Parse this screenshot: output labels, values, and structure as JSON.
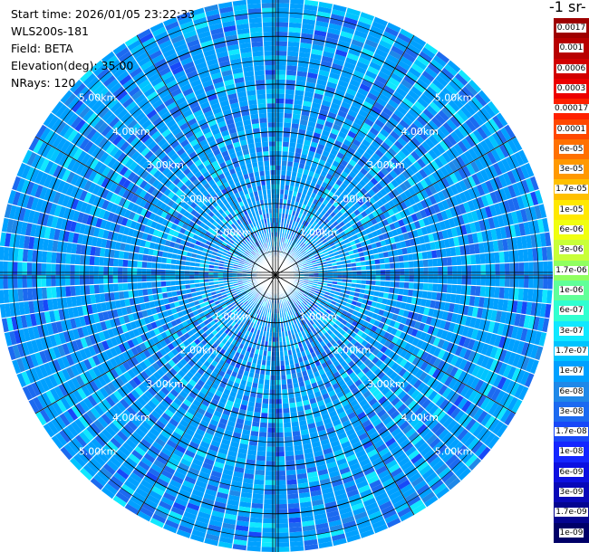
{
  "info": {
    "start_time": "Start time: 2026/01/05 23:22:33",
    "instrument": "WLS200s-181",
    "field": "Field: BETA",
    "elevation": "Elevation(deg): 35.00",
    "nrays": "NRays: 120"
  },
  "unit_label": "-1 sr-",
  "colors": {
    "background": "#ffffff",
    "base_blue": "#1a7ae8",
    "grid_line": "#000000",
    "ray_line": "#ffffff"
  },
  "chart_data": {
    "type": "heatmap",
    "projection": "polar PPI",
    "field": "BETA",
    "rays": 120,
    "range_rings_km": [
      1,
      2,
      3,
      4,
      5
    ],
    "ring_labels": [
      "1.00km",
      "2.00km",
      "3.00km",
      "4.00km",
      "5.00km"
    ],
    "max_range_km": 5.8,
    "colorbar": {
      "labels": [
        "0.0017",
        "0.001",
        "0.0006",
        "0.0003",
        "0.00017",
        "0.0001",
        "6e-05",
        "3e-05",
        "1.7e-05",
        "1e-05",
        "6e-06",
        "3e-06",
        "1.7e-06",
        "1e-06",
        "6e-07",
        "3e-07",
        "1.7e-07",
        "1e-07",
        "6e-08",
        "3e-08",
        "1.7e-08",
        "1e-08",
        "6e-09",
        "3e-09",
        "1.7e-09",
        "1e-09"
      ],
      "colors": [
        "#9e0000",
        "#b80000",
        "#d20000",
        "#ec0000",
        "#ff2000",
        "#ff4800",
        "#ff7000",
        "#ff9800",
        "#ffc000",
        "#ffe800",
        "#f0ff10",
        "#c8ff38",
        "#90ff60",
        "#60ff98",
        "#30ffd0",
        "#10e8ff",
        "#00c4ff",
        "#00a0ff",
        "#1f88e8",
        "#1c6af0",
        "#1848f8",
        "#1426ff",
        "#0c10e0",
        "#0808b8",
        "#040490",
        "#000068"
      ]
    },
    "value_distribution": {
      "dominant_level": "1e-07",
      "secondary_levels": [
        "1.7e-07",
        "3e-07",
        "6e-08",
        "3e-08"
      ]
    }
  }
}
